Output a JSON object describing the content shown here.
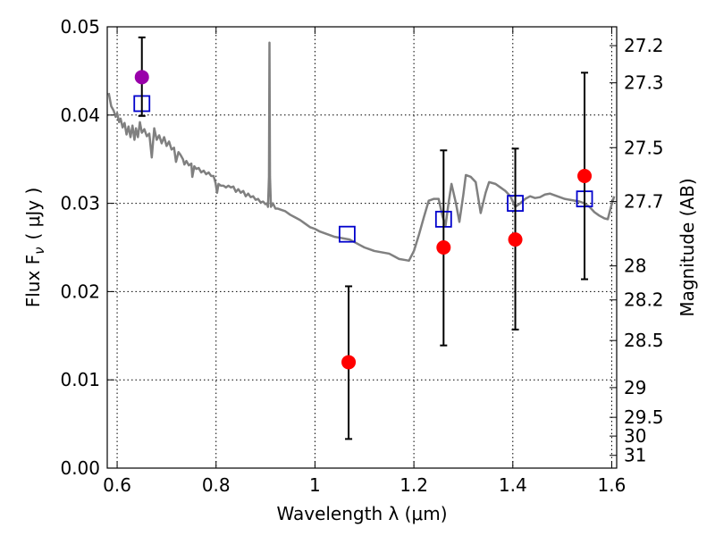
{
  "chart_data": {
    "type": "scatter",
    "xlabel": "Wavelength  λ (μm)",
    "ylabel": "Flux  F",
    "ylabel_sub": "ν",
    "ylabel_unit": "( μJy )",
    "y2label": "Magnitude (AB)",
    "xlim": [
      0.58,
      1.61
    ],
    "ylim": [
      0.0,
      0.05
    ],
    "grid": true,
    "x_ticks": [
      {
        "value": 0.6,
        "label": "0.6"
      },
      {
        "value": 0.8,
        "label": "0.8"
      },
      {
        "value": 1.0,
        "label": "1"
      },
      {
        "value": 1.2,
        "label": "1.2"
      },
      {
        "value": 1.4,
        "label": "1.4"
      },
      {
        "value": 1.6,
        "label": "1.6"
      }
    ],
    "y_ticks": [
      {
        "value": 0.0,
        "label": "0.00"
      },
      {
        "value": 0.01,
        "label": "0.01"
      },
      {
        "value": 0.02,
        "label": "0.02"
      },
      {
        "value": 0.03,
        "label": "0.03"
      },
      {
        "value": 0.04,
        "label": "0.04"
      },
      {
        "value": 0.05,
        "label": "0.05"
      }
    ],
    "y2_ticks": [
      {
        "mag": 27.2,
        "label": "27.2"
      },
      {
        "mag": 27.3,
        "label": "27.3"
      },
      {
        "mag": 27.5,
        "label": "27.5"
      },
      {
        "mag": 27.7,
        "label": "27.7"
      },
      {
        "mag": 28.0,
        "label": "28"
      },
      {
        "mag": 28.2,
        "label": "28.2"
      },
      {
        "mag": 28.5,
        "label": "28.5"
      },
      {
        "mag": 29.0,
        "label": "29"
      },
      {
        "mag": 29.5,
        "label": "29.5"
      },
      {
        "mag": 30.0,
        "label": "30"
      },
      {
        "mag": 31.0,
        "label": "31"
      }
    ],
    "series": [
      {
        "name": "model spectrum",
        "kind": "line",
        "color": "#808080",
        "points": [
          [
            0.583,
            0.0425
          ],
          [
            0.588,
            0.041
          ],
          [
            0.593,
            0.0405
          ],
          [
            0.597,
            0.0398
          ],
          [
            0.6,
            0.0402
          ],
          [
            0.604,
            0.0392
          ],
          [
            0.607,
            0.0396
          ],
          [
            0.611,
            0.0386
          ],
          [
            0.615,
            0.0391
          ],
          [
            0.619,
            0.0378
          ],
          [
            0.623,
            0.0387
          ],
          [
            0.627,
            0.0375
          ],
          [
            0.631,
            0.0388
          ],
          [
            0.635,
            0.0372
          ],
          [
            0.638,
            0.0385
          ],
          [
            0.642,
            0.0375
          ],
          [
            0.646,
            0.0392
          ],
          [
            0.65,
            0.038
          ],
          [
            0.655,
            0.0384
          ],
          [
            0.66,
            0.0376
          ],
          [
            0.665,
            0.0379
          ],
          [
            0.67,
            0.0352
          ],
          [
            0.675,
            0.0385
          ],
          [
            0.68,
            0.0372
          ],
          [
            0.685,
            0.0377
          ],
          [
            0.69,
            0.0368
          ],
          [
            0.695,
            0.0375
          ],
          [
            0.7,
            0.0365
          ],
          [
            0.705,
            0.037
          ],
          [
            0.71,
            0.0361
          ],
          [
            0.715,
            0.0363
          ],
          [
            0.719,
            0.0347
          ],
          [
            0.724,
            0.0358
          ],
          [
            0.728,
            0.0355
          ],
          [
            0.733,
            0.035
          ],
          [
            0.736,
            0.0344
          ],
          [
            0.74,
            0.0348
          ],
          [
            0.745,
            0.0343
          ],
          [
            0.75,
            0.0345
          ],
          [
            0.752,
            0.033
          ],
          [
            0.756,
            0.0342
          ],
          [
            0.76,
            0.0339
          ],
          [
            0.765,
            0.034
          ],
          [
            0.77,
            0.0335
          ],
          [
            0.775,
            0.0337
          ],
          [
            0.78,
            0.0333
          ],
          [
            0.785,
            0.0335
          ],
          [
            0.79,
            0.0331
          ],
          [
            0.795,
            0.0331
          ],
          [
            0.799,
            0.0323
          ],
          [
            0.802,
            0.0312
          ],
          [
            0.805,
            0.0322
          ],
          [
            0.81,
            0.032
          ],
          [
            0.815,
            0.032
          ],
          [
            0.82,
            0.0318
          ],
          [
            0.825,
            0.032
          ],
          [
            0.83,
            0.0318
          ],
          [
            0.835,
            0.0319
          ],
          [
            0.84,
            0.0313
          ],
          [
            0.845,
            0.0316
          ],
          [
            0.85,
            0.0312
          ],
          [
            0.855,
            0.0314
          ],
          [
            0.86,
            0.0308
          ],
          [
            0.865,
            0.0311
          ],
          [
            0.87,
            0.0307
          ],
          [
            0.875,
            0.0308
          ],
          [
            0.88,
            0.0304
          ],
          [
            0.885,
            0.0305
          ],
          [
            0.89,
            0.0301
          ],
          [
            0.895,
            0.0302
          ],
          [
            0.9,
            0.0299
          ],
          [
            0.903,
            0.03
          ],
          [
            0.905,
            0.0296
          ],
          [
            0.907,
            0.033
          ],
          [
            0.908,
            0.0482
          ],
          [
            0.909,
            0.033
          ],
          [
            0.911,
            0.0296
          ],
          [
            0.915,
            0.03
          ],
          [
            0.92,
            0.0294
          ],
          [
            0.925,
            0.0294
          ],
          [
            0.93,
            0.0293
          ],
          [
            0.94,
            0.0291
          ],
          [
            0.95,
            0.0287
          ],
          [
            0.96,
            0.0284
          ],
          [
            0.97,
            0.0281
          ],
          [
            0.98,
            0.0277
          ],
          [
            0.99,
            0.0273
          ],
          [
            1.0,
            0.0271
          ],
          [
            1.01,
            0.0268
          ],
          [
            1.02,
            0.0266
          ],
          [
            1.03,
            0.0264
          ],
          [
            1.04,
            0.0262
          ],
          [
            1.05,
            0.0261
          ],
          [
            1.06,
            0.026
          ],
          [
            1.07,
            0.0259
          ],
          [
            1.08,
            0.0256
          ],
          [
            1.09,
            0.0253
          ],
          [
            1.1,
            0.025
          ],
          [
            1.11,
            0.0248
          ],
          [
            1.12,
            0.0246
          ],
          [
            1.13,
            0.0245
          ],
          [
            1.14,
            0.0244
          ],
          [
            1.15,
            0.0243
          ],
          [
            1.16,
            0.024
          ],
          [
            1.17,
            0.0237
          ],
          [
            1.18,
            0.0236
          ],
          [
            1.19,
            0.0235
          ],
          [
            1.2,
            0.0246
          ],
          [
            1.21,
            0.0264
          ],
          [
            1.22,
            0.0284
          ],
          [
            1.23,
            0.0303
          ],
          [
            1.24,
            0.0305
          ],
          [
            1.25,
            0.0305
          ],
          [
            1.258,
            0.0285
          ],
          [
            1.264,
            0.0275
          ],
          [
            1.27,
            0.03
          ],
          [
            1.276,
            0.0322
          ],
          [
            1.285,
            0.03
          ],
          [
            1.292,
            0.0279
          ],
          [
            1.3,
            0.031
          ],
          [
            1.305,
            0.0332
          ],
          [
            1.315,
            0.033
          ],
          [
            1.325,
            0.0324
          ],
          [
            1.335,
            0.0289
          ],
          [
            1.345,
            0.0312
          ],
          [
            1.352,
            0.0324
          ],
          [
            1.365,
            0.0322
          ],
          [
            1.375,
            0.0318
          ],
          [
            1.385,
            0.0314
          ],
          [
            1.395,
            0.0308
          ],
          [
            1.405,
            0.0296
          ],
          [
            1.415,
            0.03
          ],
          [
            1.425,
            0.0305
          ],
          [
            1.435,
            0.0308
          ],
          [
            1.445,
            0.0306
          ],
          [
            1.455,
            0.0307
          ],
          [
            1.465,
            0.031
          ],
          [
            1.475,
            0.0311
          ],
          [
            1.485,
            0.0309
          ],
          [
            1.495,
            0.0307
          ],
          [
            1.505,
            0.0305
          ],
          [
            1.515,
            0.0304
          ],
          [
            1.525,
            0.0303
          ],
          [
            1.535,
            0.0302
          ],
          [
            1.545,
            0.03
          ],
          [
            1.555,
            0.0296
          ],
          [
            1.565,
            0.029
          ],
          [
            1.575,
            0.0286
          ],
          [
            1.585,
            0.0283
          ],
          [
            1.592,
            0.0282
          ],
          [
            1.598,
            0.0295
          ],
          [
            1.605,
            0.0308
          ]
        ]
      },
      {
        "name": "model photometry",
        "kind": "square",
        "color": "#0000cc",
        "points": [
          [
            0.65,
            0.0413
          ],
          [
            1.065,
            0.0265
          ],
          [
            1.26,
            0.0282
          ],
          [
            1.405,
            0.03
          ],
          [
            1.545,
            0.0305
          ]
        ]
      },
      {
        "name": "observed (red)",
        "kind": "circle",
        "color": "#ff0000",
        "points": [
          {
            "x": 1.068,
            "y": 0.012,
            "err": [
              0.0033,
              0.0206
            ]
          },
          {
            "x": 1.26,
            "y": 0.025,
            "err": [
              0.0139,
              0.036
            ]
          },
          {
            "x": 1.405,
            "y": 0.0259,
            "err": [
              0.0157,
              0.0362
            ]
          },
          {
            "x": 1.545,
            "y": 0.0331,
            "err": [
              0.0214,
              0.0448
            ]
          }
        ]
      },
      {
        "name": "observed (purple)",
        "kind": "circle",
        "color": "#9900aa",
        "points": [
          {
            "x": 0.65,
            "y": 0.0443,
            "err": [
              0.0399,
              0.0488
            ]
          }
        ]
      }
    ]
  }
}
